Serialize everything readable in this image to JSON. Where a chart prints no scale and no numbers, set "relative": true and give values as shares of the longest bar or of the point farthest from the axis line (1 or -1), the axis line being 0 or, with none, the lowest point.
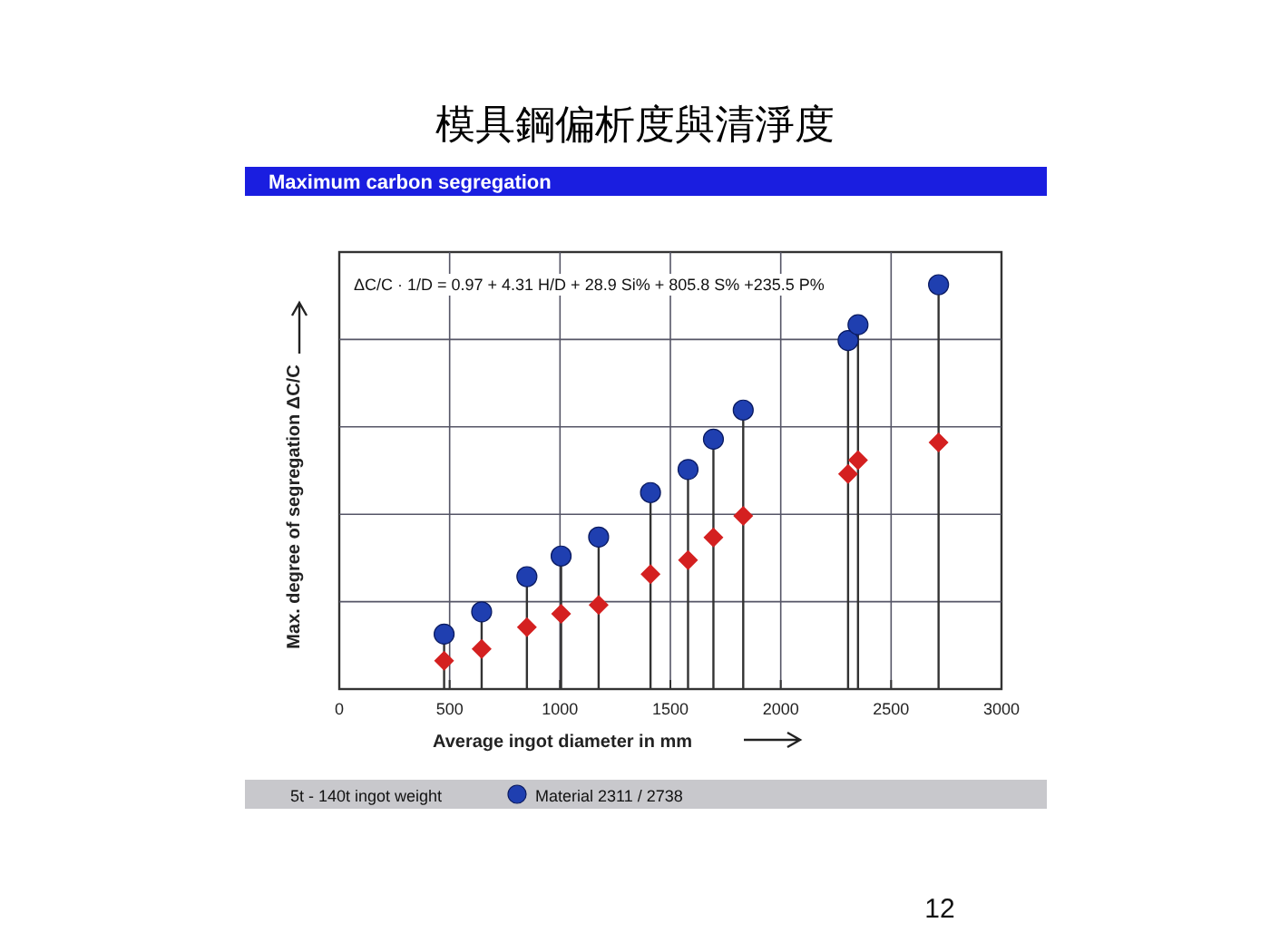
{
  "chart_data": {
    "type": "lollipop",
    "title": "模具鋼偏析度與清淨度",
    "subtitle": "Maximum carbon segregation",
    "xlabel": "Average ingot diameter in mm",
    "ylabel": "Max. degree of segregation ΔC/C",
    "annotations": [
      "ΔC/C · 1/D = 0.97 + 4.31 H/D + 28.9 Si% + 805.8 S% +235.5 P%",
      "5t - 140t ingot weight",
      "12"
    ],
    "relative": true,
    "xlim": [
      0,
      3000
    ],
    "xticks": [
      0,
      500,
      1000,
      1500,
      2000,
      2500,
      3000
    ],
    "grid": true,
    "legend": "bottom",
    "x": [
      475,
      645,
      850,
      1005,
      1175,
      1410,
      1580,
      1695,
      1830,
      2305,
      2350,
      2715
    ],
    "series": [
      {
        "name": "Material 2311 / 2738",
        "type": "lollipop",
        "marker": "circle",
        "color": "#1f3fb0",
        "values": [
          0.136,
          0.191,
          0.278,
          0.329,
          0.376,
          0.486,
          0.543,
          0.618,
          0.69,
          0.862,
          0.901,
          1
        ]
      },
      {
        "type": "scatter",
        "marker": "diamond",
        "color": "#d42020",
        "values": [
          0.07,
          0.099,
          0.153,
          0.186,
          0.208,
          0.284,
          0.319,
          0.375,
          0.428,
          0.532,
          0.566,
          0.61
        ]
      }
    ]
  }
}
